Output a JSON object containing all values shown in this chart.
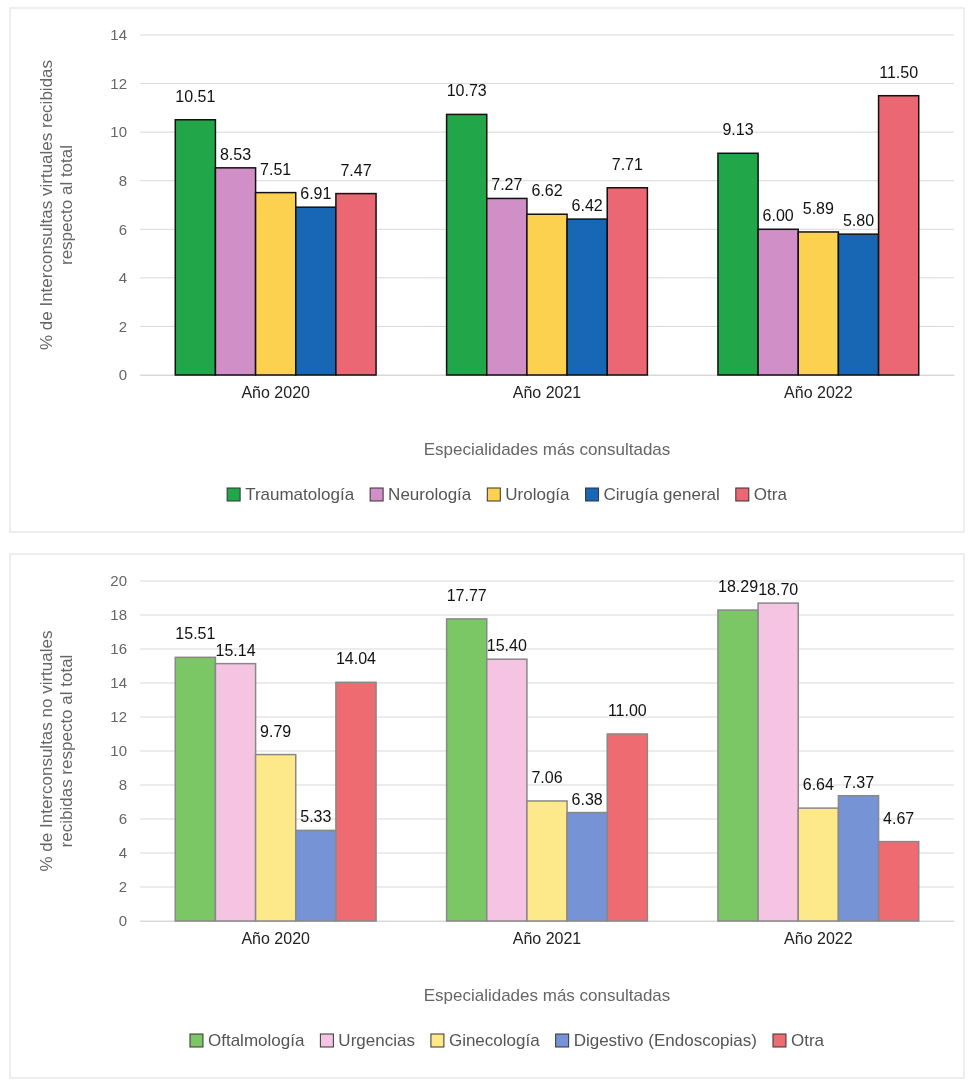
{
  "chart_data": [
    {
      "type": "bar",
      "ylabel": "% de Interconsultas virtuales recibidas respecto al total",
      "xlabel": "Especialidades más consultadas",
      "categories": [
        "Año 2020",
        "Año 2021",
        "Año 2022"
      ],
      "ylim": [
        0,
        14
      ],
      "yticks": [
        0,
        2,
        4,
        6,
        8,
        10,
        12,
        14
      ],
      "grid": "y",
      "legend": "bottom",
      "series": [
        {
          "name": "Traumatología",
          "color": "#22a64a",
          "values": [
            10.51,
            10.73,
            9.13
          ],
          "value_labels": [
            "10.51",
            "10.73",
            "9.13"
          ]
        },
        {
          "name": "Neurología",
          "color": "#d08fc6",
          "values": [
            8.53,
            7.27,
            6.0
          ],
          "value_labels": [
            "8.53",
            "7.27",
            "6.00"
          ]
        },
        {
          "name": "Urología",
          "color": "#fcd14f",
          "values": [
            7.51,
            6.62,
            5.89
          ],
          "value_labels": [
            "7.51",
            "6.62",
            "5.89"
          ]
        },
        {
          "name": "Cirugía general",
          "color": "#1767b5",
          "values": [
            6.91,
            6.42,
            5.8
          ],
          "value_labels": [
            "6.91",
            "6.42",
            "5.80"
          ]
        },
        {
          "name": "Otra",
          "color": "#ec6774",
          "values": [
            7.47,
            7.71,
            11.5
          ],
          "value_labels": [
            "7.47",
            "7.71",
            "11.50"
          ]
        }
      ]
    },
    {
      "type": "bar",
      "ylabel": "% de Interconsultas no virtuales recibidas respecto al total",
      "xlabel": "Especialidades más consultadas",
      "categories": [
        "Año 2020",
        "Año 2021",
        "Año 2022"
      ],
      "ylim": [
        0,
        20
      ],
      "yticks": [
        0,
        2,
        4,
        6,
        8,
        10,
        12,
        14,
        16,
        18,
        20
      ],
      "grid": "y",
      "legend": "bottom",
      "series": [
        {
          "name": "Oftalmología",
          "color": "#7cc765",
          "values": [
            15.51,
            17.77,
            18.29
          ],
          "value_labels": [
            "15.51",
            "17.77",
            "18.29"
          ]
        },
        {
          "name": "Urgencias",
          "color": "#f5c4e2",
          "values": [
            15.14,
            15.4,
            18.7
          ],
          "value_labels": [
            "15.14",
            "15.40",
            "18.70"
          ]
        },
        {
          "name": "Ginecología",
          "color": "#fde98a",
          "values": [
            9.79,
            7.06,
            6.64
          ],
          "value_labels": [
            "9.79",
            "7.06",
            "6.64"
          ]
        },
        {
          "name": "Digestivo (Endoscopias)",
          "color": "#7693d6",
          "values": [
            5.33,
            6.38,
            7.37
          ],
          "value_labels": [
            "5.33",
            "6.38",
            "7.37"
          ]
        },
        {
          "name": "Otra",
          "color": "#ee6b72",
          "values": [
            14.04,
            11.0,
            4.67
          ],
          "value_labels": [
            "14.04",
            "11.00",
            "4.67"
          ]
        }
      ]
    }
  ]
}
